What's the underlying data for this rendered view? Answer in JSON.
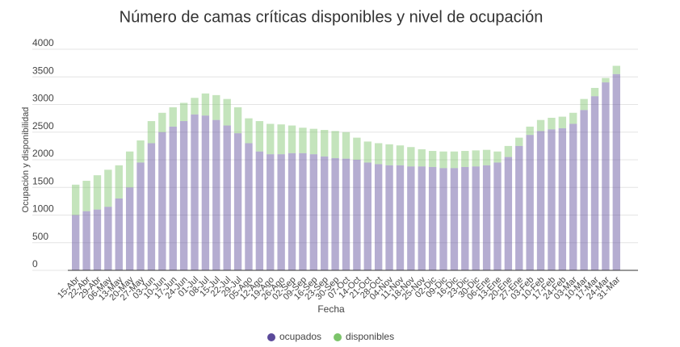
{
  "chart_data": {
    "type": "stacked_bar",
    "title": "Número de camas críticas disponibles y nivel de ocupación",
    "x_label": "Fecha",
    "y_label": "Ocupación y disponibilidad",
    "categories": [
      "15-Abr",
      "22-Abr",
      "29-Abr",
      "06-May",
      "13-May",
      "20-May",
      "27-May",
      "03-Jun",
      "10-Jun",
      "17-Jun",
      "24-Jun",
      "01-Jul",
      "08-Jul",
      "15-Jul",
      "22-Jul",
      "29-Jul",
      "05-Ago",
      "12-Ago",
      "19-Ago",
      "26-Ago",
      "02-Sep",
      "09-Sep",
      "16-Sep",
      "23-Sep",
      "30-Sep",
      "07-Oct",
      "14-Oct",
      "21-Oct",
      "28-Oct",
      "04-Nov",
      "11-Nov",
      "18-Nov",
      "25-Nov",
      "02-Dic",
      "09-Dic",
      "16-Dic",
      "23-Dic",
      "30-Dic",
      "06-Ene",
      "13-Ene",
      "20-Ene",
      "27-Ene",
      "03-Feb",
      "10-Feb",
      "17-Feb",
      "24-Feb",
      "03-Mar",
      "10-Mar",
      "17-Mar",
      "24-Mar",
      "31-Mar"
    ],
    "series": [
      {
        "name": "ocupados",
        "color": "#5b4a9a",
        "values": [
          1000,
          1070,
          1100,
          1150,
          1300,
          1500,
          1950,
          2300,
          2500,
          2600,
          2700,
          2820,
          2800,
          2720,
          2620,
          2480,
          2300,
          2150,
          2100,
          2100,
          2120,
          2120,
          2100,
          2060,
          2030,
          2020,
          2000,
          1950,
          1920,
          1900,
          1900,
          1880,
          1880,
          1870,
          1850,
          1850,
          1870,
          1880,
          1900,
          1950,
          2050,
          2250,
          2450,
          2520,
          2550,
          2570,
          2650,
          2900,
          3150,
          3400,
          3550
        ]
      },
      {
        "name": "disponibles",
        "color": "#7cc46a",
        "values": [
          550,
          550,
          620,
          670,
          600,
          650,
          400,
          400,
          350,
          350,
          330,
          300,
          400,
          450,
          480,
          470,
          450,
          550,
          550,
          540,
          500,
          460,
          460,
          480,
          490,
          480,
          400,
          380,
          380,
          380,
          360,
          350,
          310,
          290,
          300,
          300,
          290,
          290,
          280,
          200,
          200,
          150,
          150,
          200,
          210,
          210,
          200,
          200,
          150,
          80,
          150
        ]
      }
    ],
    "ylim": [
      0,
      4000
    ],
    "yticks": [
      0,
      500,
      1000,
      1500,
      2000,
      2500,
      3000,
      3500,
      4000
    ],
    "grid": true,
    "legend": "bottom"
  }
}
